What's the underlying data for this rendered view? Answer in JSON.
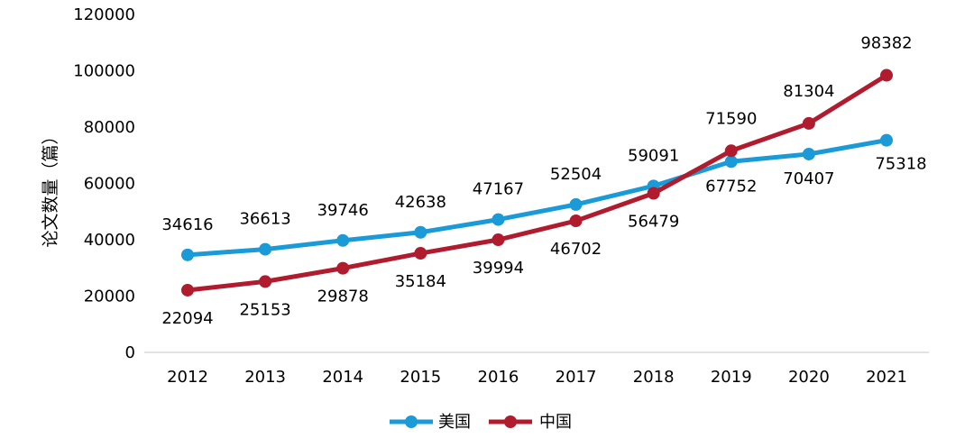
{
  "chart_data": {
    "type": "line",
    "title": "",
    "xlabel": "",
    "ylabel": "论文数量（篇）",
    "categories": [
      "2012",
      "2013",
      "2014",
      "2015",
      "2016",
      "2017",
      "2018",
      "2019",
      "2020",
      "2021"
    ],
    "yticks": [
      "0",
      "20000",
      "40000",
      "60000",
      "80000",
      "100000",
      "120000"
    ],
    "ylim": [
      0,
      120000
    ],
    "grid": false,
    "legend_position": "bottom",
    "series": [
      {
        "name": "美国",
        "color": "#1a9ad6",
        "values": [
          34616,
          36613,
          39746,
          42638,
          47167,
          52504,
          59091,
          67752,
          70407,
          75318
        ],
        "labels": [
          "34616",
          "36613",
          "39746",
          "42638",
          "47167",
          "52504",
          "59091",
          "67752",
          "70407",
          "75318"
        ]
      },
      {
        "name": "中国",
        "color": "#b01c2e",
        "values": [
          22094,
          25153,
          29878,
          35184,
          39994,
          46702,
          56479,
          71590,
          81304,
          98382
        ],
        "labels": [
          "22094",
          "25153",
          "29878",
          "35184",
          "39994",
          "46702",
          "56479",
          "71590",
          "81304",
          "98382"
        ]
      }
    ]
  }
}
